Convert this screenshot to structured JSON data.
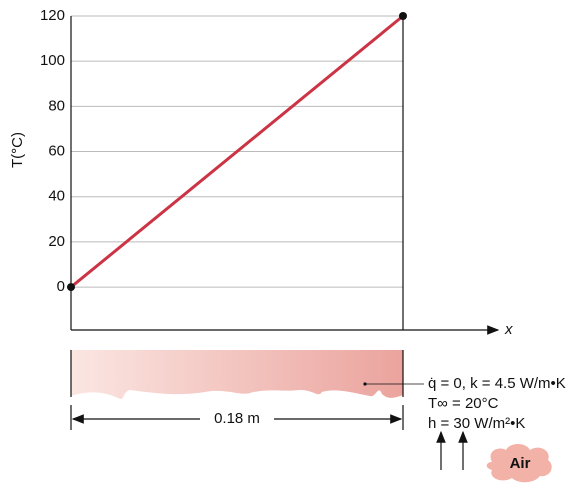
{
  "chart_data": {
    "type": "line",
    "x": [
      0,
      0.18
    ],
    "values": [
      0,
      120
    ],
    "color": "#cc3344",
    "xlim": [
      0,
      0.18
    ],
    "ylim": [
      -19,
      120
    ],
    "yticks": [
      0,
      20,
      40,
      60,
      80,
      100,
      120
    ],
    "grid": true,
    "y_label": "T(°C)",
    "x_label": "x",
    "annotations": [
      "0.18 m",
      "q̇ = 0, k = 4.5 W/m•K",
      "T∞ = 20°C",
      "h = 30 W/m²•K",
      "Air"
    ]
  }
}
